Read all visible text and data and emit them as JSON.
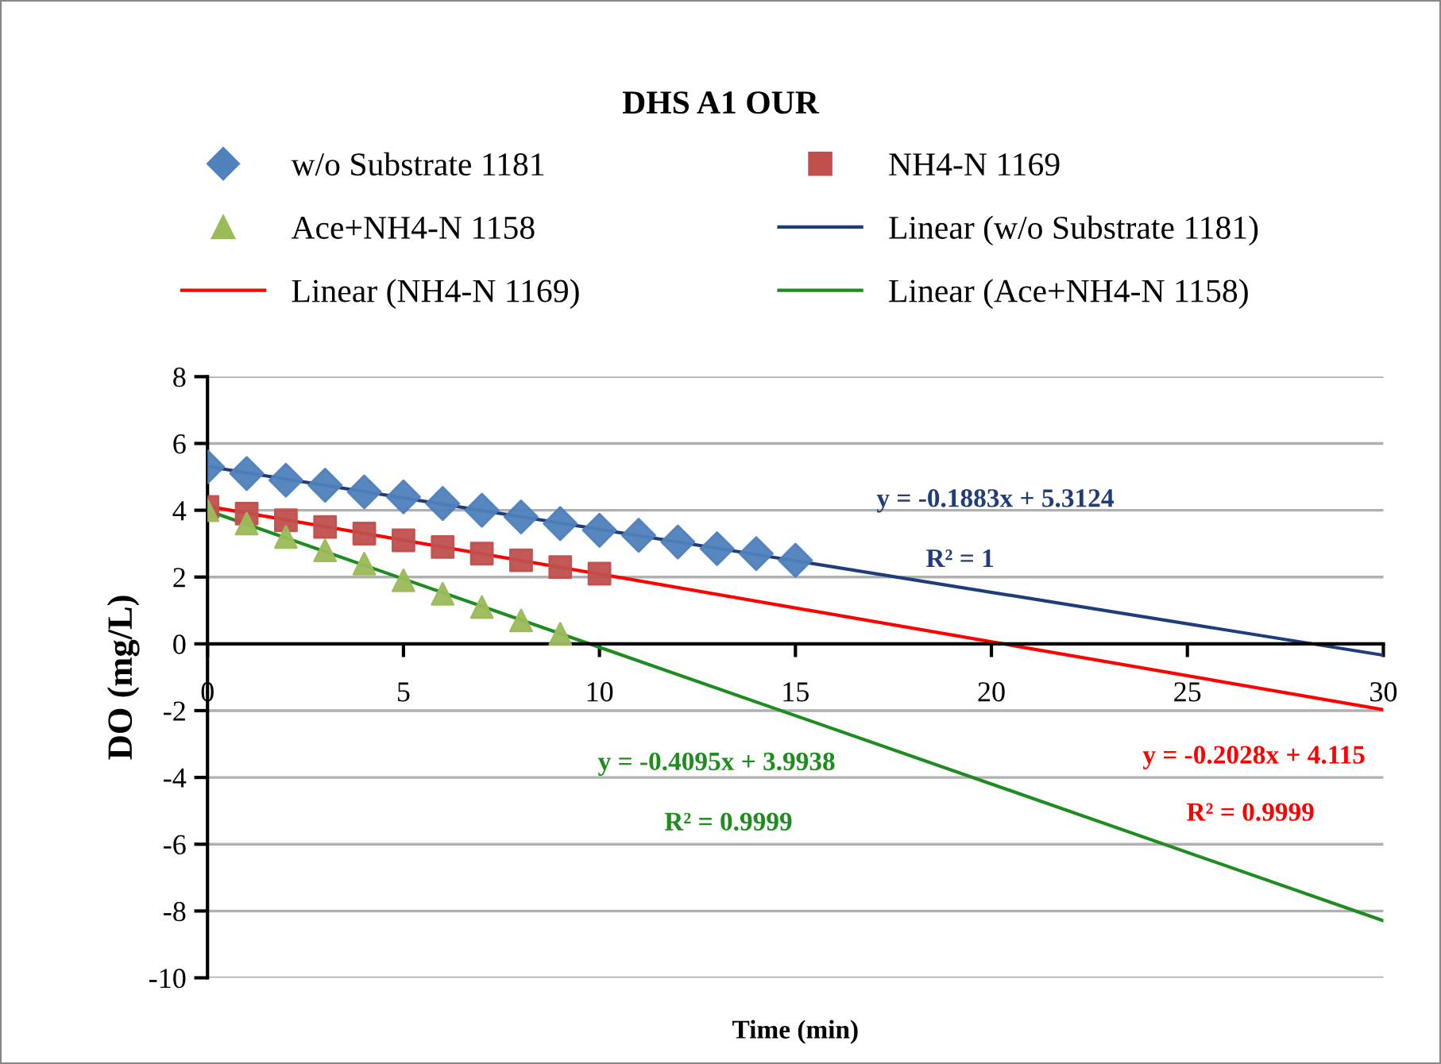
{
  "chart_data": {
    "type": "scatter",
    "title": "DHS A1 OUR",
    "xlabel": "Time (min)",
    "ylabel": "DO (mg/L)",
    "xlim": [
      0,
      30
    ],
    "xticks": [
      0,
      5,
      10,
      15,
      20,
      25,
      30
    ],
    "ylim": [
      -10,
      8
    ],
    "yticks": [
      -10,
      -8,
      -6,
      -4,
      -2,
      0,
      2,
      4,
      6,
      8
    ],
    "grid": "y",
    "legend": "top",
    "annotations": [
      "y = -0.1883x + 5.3124",
      "R² = 1",
      "y = -0.2028x + 4.115",
      "R² = 0.9999",
      "y = -0.4095x + 3.9938",
      "R² = 0.9999"
    ],
    "series": [
      {
        "name": "w/o Substrate 1181",
        "type": "scatter",
        "marker": "diamond",
        "color": "#4f81bd",
        "x": [
          0,
          1,
          2,
          3,
          4,
          5,
          6,
          7,
          8,
          9,
          10,
          11,
          12,
          13,
          14,
          15
        ],
        "values": [
          5.3,
          5.1,
          4.9,
          4.75,
          4.55,
          4.4,
          4.2,
          4.0,
          3.8,
          3.6,
          3.4,
          3.25,
          3.05,
          2.85,
          2.7,
          2.5
        ]
      },
      {
        "name": "NH4-N 1169",
        "type": "scatter",
        "marker": "square",
        "color": "#c0504d",
        "x": [
          0,
          1,
          2,
          3,
          4,
          5,
          6,
          7,
          8,
          9,
          10
        ],
        "values": [
          4.1,
          3.9,
          3.7,
          3.5,
          3.3,
          3.1,
          2.9,
          2.7,
          2.5,
          2.3,
          2.1
        ]
      },
      {
        "name": "Ace+NH4-N 1158",
        "type": "scatter",
        "marker": "triangle",
        "color": "#9bbb59",
        "x": [
          0,
          1,
          2,
          3,
          4,
          5,
          6,
          7,
          8,
          9
        ],
        "values": [
          4.0,
          3.6,
          3.2,
          2.8,
          2.4,
          1.9,
          1.5,
          1.1,
          0.7,
          0.3
        ]
      },
      {
        "name": "Linear (w/o Substrate 1181)",
        "type": "line",
        "marker": "none",
        "line_style": "solid",
        "color": "#1f3d7a",
        "x": [
          0,
          30
        ],
        "values": [
          5.31,
          -0.34
        ]
      },
      {
        "name": "Linear (NH4-N 1169)",
        "type": "line",
        "marker": "none",
        "line_style": "solid",
        "color": "#ff0000",
        "x": [
          0,
          30
        ],
        "values": [
          4.12,
          -1.97
        ]
      },
      {
        "name": "Linear (Ace+NH4-N 1158)",
        "type": "line",
        "marker": "none",
        "line_style": "solid",
        "color": "#1e8c1e",
        "x": [
          0,
          30
        ],
        "values": [
          3.99,
          -8.29
        ]
      }
    ]
  }
}
